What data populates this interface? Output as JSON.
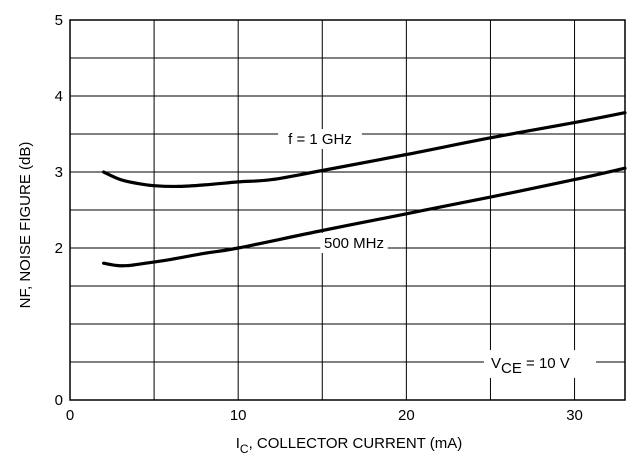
{
  "chart_data": {
    "type": "line",
    "title": "",
    "xlabel_main": "I",
    "xlabel_sub": "C",
    "xlabel_rest": ", COLLECTOR CURRENT (mA)",
    "ylabel": "NF, NOISE FIGURE (dB)",
    "xlim": [
      0,
      33
    ],
    "ylim": [
      0,
      5
    ],
    "x_ticks": [
      {
        "value": 0,
        "label": "0"
      },
      {
        "value": 10,
        "label": "10"
      },
      {
        "value": 20,
        "label": "20"
      },
      {
        "value": 30,
        "label": "30"
      }
    ],
    "y_ticks": [
      {
        "value": 0,
        "label": "0"
      },
      {
        "value": 2,
        "label": "2"
      },
      {
        "value": 3,
        "label": "3"
      },
      {
        "value": 4,
        "label": "4"
      },
      {
        "value": 5,
        "label": "5"
      }
    ],
    "grid": true,
    "series": [
      {
        "name": "f = 1 GHz",
        "x": [
          2,
          3,
          4,
          5,
          6.5,
          8,
          10,
          12,
          15,
          20,
          25,
          30,
          33
        ],
        "y": [
          3.0,
          2.9,
          2.85,
          2.82,
          2.81,
          2.83,
          2.87,
          2.9,
          3.02,
          3.23,
          3.45,
          3.65,
          3.78
        ]
      },
      {
        "name": "500 MHz",
        "x": [
          2,
          2.8,
          3.5,
          4.5,
          6,
          8,
          10,
          15,
          20,
          25,
          30,
          33
        ],
        "y": [
          1.8,
          1.77,
          1.77,
          1.8,
          1.85,
          1.93,
          2.0,
          2.23,
          2.45,
          2.67,
          2.9,
          3.05
        ]
      }
    ],
    "conditions": {
      "v_main": "V",
      "v_sub": "CE",
      "v_rest": " = 10 V"
    }
  }
}
